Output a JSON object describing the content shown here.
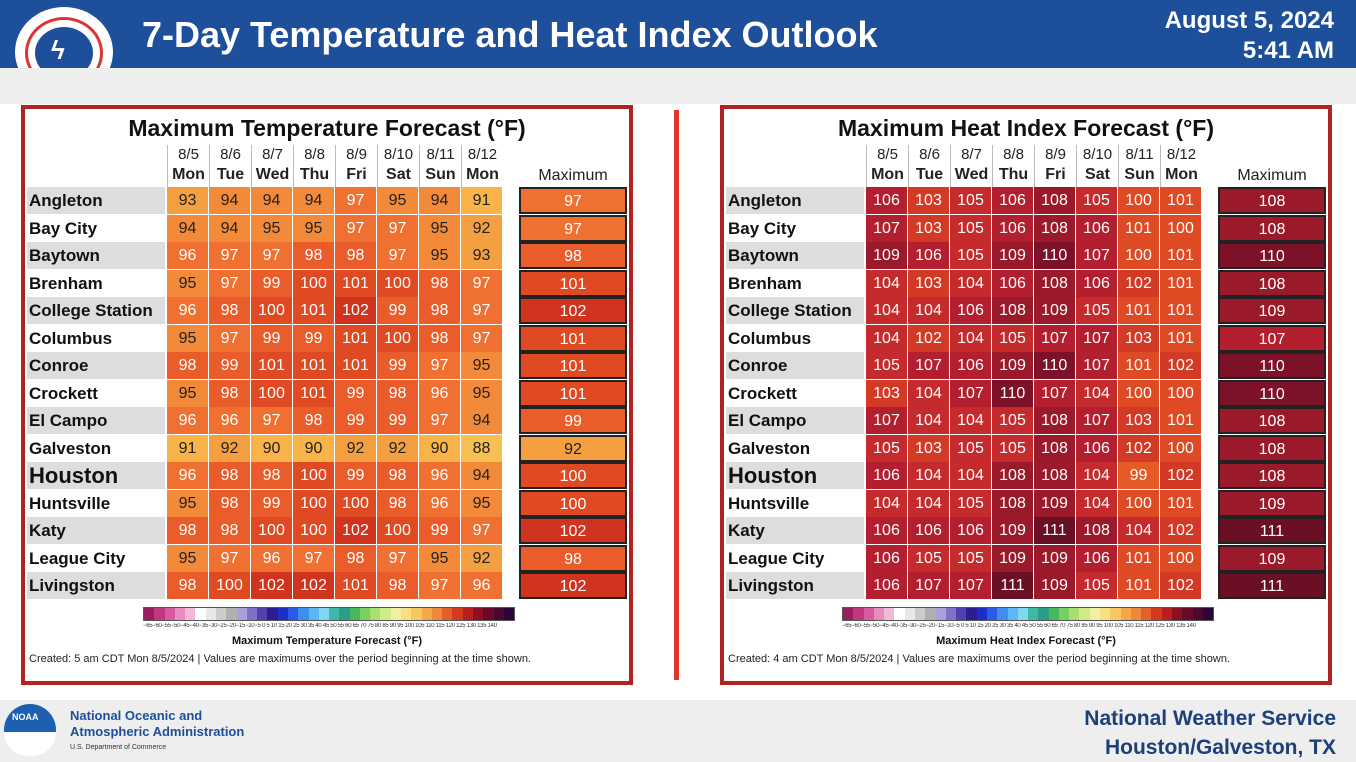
{
  "header": {
    "title": "7-Day Temperature and Heat Index Outlook",
    "date": "August 5, 2024",
    "time": "5:41 AM",
    "logo_text": "NATIONAL WEATHER SERVICE"
  },
  "days": [
    {
      "date": "8/5",
      "dow": "Mon"
    },
    {
      "date": "8/6",
      "dow": "Tue"
    },
    {
      "date": "8/7",
      "dow": "Wed"
    },
    {
      "date": "8/8",
      "dow": "Thu"
    },
    {
      "date": "8/9",
      "dow": "Fri"
    },
    {
      "date": "8/10",
      "dow": "Sat"
    },
    {
      "date": "8/11",
      "dow": "Sun"
    },
    {
      "date": "8/12",
      "dow": "Mon"
    }
  ],
  "max_label": "Maximum",
  "chart_data": [
    {
      "type": "table",
      "title": "Maximum Temperature Forecast (°F)",
      "legend_title": "Maximum Temperature Forecast (°F)",
      "legend_ticks": "−65−60−55−50−45−40−35−30−25−20−15−10−5 0 5 10 15 20 25 30 35 40 45 50 55 60 65 70 75 80 85 90 95 100 105 110 115 120 125 130 135 140",
      "created": "Created: 5 am CDT Mon 8/5/2024  |  Values are maximums over the period beginning at the time shown.",
      "rows": [
        {
          "city": "Angleton",
          "values": [
            93,
            94,
            94,
            94,
            97,
            95,
            94,
            91
          ],
          "max": 97
        },
        {
          "city": "Bay City",
          "values": [
            94,
            94,
            95,
            95,
            97,
            97,
            95,
            92
          ],
          "max": 97
        },
        {
          "city": "Baytown",
          "values": [
            96,
            97,
            97,
            98,
            98,
            97,
            95,
            93
          ],
          "max": 98
        },
        {
          "city": "Brenham",
          "values": [
            95,
            97,
            99,
            100,
            101,
            100,
            98,
            97
          ],
          "max": 101
        },
        {
          "city": "College Station",
          "values": [
            96,
            98,
            100,
            101,
            102,
            99,
            98,
            97
          ],
          "max": 102
        },
        {
          "city": "Columbus",
          "values": [
            95,
            97,
            99,
            99,
            101,
            100,
            98,
            97
          ],
          "max": 101
        },
        {
          "city": "Conroe",
          "values": [
            98,
            99,
            101,
            101,
            101,
            99,
            97,
            95
          ],
          "max": 101
        },
        {
          "city": "Crockett",
          "values": [
            95,
            98,
            100,
            101,
            99,
            98,
            96,
            95
          ],
          "max": 101
        },
        {
          "city": "El Campo",
          "values": [
            96,
            96,
            97,
            98,
            99,
            99,
            97,
            94
          ],
          "max": 99
        },
        {
          "city": "Galveston",
          "values": [
            91,
            92,
            90,
            90,
            92,
            92,
            90,
            88
          ],
          "max": 92
        },
        {
          "city": "Houston",
          "values": [
            96,
            98,
            98,
            100,
            99,
            98,
            96,
            94
          ],
          "max": 100
        },
        {
          "city": "Huntsville",
          "values": [
            95,
            98,
            99,
            100,
            100,
            98,
            96,
            95
          ],
          "max": 100
        },
        {
          "city": "Katy",
          "values": [
            98,
            98,
            100,
            100,
            102,
            100,
            99,
            97
          ],
          "max": 102
        },
        {
          "city": "League City",
          "values": [
            95,
            97,
            96,
            97,
            98,
            97,
            95,
            92
          ],
          "max": 98
        },
        {
          "city": "Livingston",
          "values": [
            98,
            100,
            102,
            102,
            101,
            98,
            97,
            96
          ],
          "max": 102
        }
      ]
    },
    {
      "type": "table",
      "title": "Maximum Heat Index Forecast (°F)",
      "legend_title": "Maximum Heat Index Forecast (°F)",
      "legend_ticks": "−65−60−55−50−45−40−35−30−25−20−15−10−5 0 5 10 15 20 25 30 35 40 45 50 55 60 65 70 75 80 85 90 95 100 105 110 115 120 125 130 135 140",
      "created": "Created: 4 am CDT Mon 8/5/2024  |  Values are maximums over the period beginning at the time shown.",
      "rows": [
        {
          "city": "Angleton",
          "values": [
            106,
            103,
            105,
            106,
            108,
            105,
            100,
            101
          ],
          "max": 108
        },
        {
          "city": "Bay City",
          "values": [
            107,
            103,
            105,
            106,
            108,
            106,
            101,
            100
          ],
          "max": 108
        },
        {
          "city": "Baytown",
          "values": [
            109,
            106,
            105,
            109,
            110,
            107,
            100,
            101
          ],
          "max": 110
        },
        {
          "city": "Brenham",
          "values": [
            104,
            103,
            104,
            106,
            108,
            106,
            102,
            101
          ],
          "max": 108
        },
        {
          "city": "College Station",
          "values": [
            104,
            104,
            106,
            108,
            109,
            105,
            101,
            101
          ],
          "max": 109
        },
        {
          "city": "Columbus",
          "values": [
            104,
            102,
            104,
            105,
            107,
            107,
            103,
            101
          ],
          "max": 107
        },
        {
          "city": "Conroe",
          "values": [
            105,
            107,
            106,
            109,
            110,
            107,
            101,
            102
          ],
          "max": 110
        },
        {
          "city": "Crockett",
          "values": [
            103,
            104,
            107,
            110,
            107,
            104,
            100,
            100
          ],
          "max": 110
        },
        {
          "city": "El Campo",
          "values": [
            107,
            104,
            104,
            105,
            108,
            107,
            103,
            101
          ],
          "max": 108
        },
        {
          "city": "Galveston",
          "values": [
            105,
            103,
            105,
            105,
            108,
            106,
            102,
            100
          ],
          "max": 108
        },
        {
          "city": "Houston",
          "values": [
            106,
            104,
            104,
            108,
            108,
            104,
            99,
            102
          ],
          "max": 108
        },
        {
          "city": "Huntsville",
          "values": [
            104,
            104,
            105,
            108,
            109,
            104,
            100,
            101
          ],
          "max": 109
        },
        {
          "city": "Katy",
          "values": [
            106,
            106,
            106,
            109,
            111,
            108,
            104,
            102
          ],
          "max": 111
        },
        {
          "city": "League City",
          "values": [
            106,
            105,
            105,
            109,
            109,
            106,
            101,
            100
          ],
          "max": 109
        },
        {
          "city": "Livingston",
          "values": [
            106,
            107,
            107,
            111,
            109,
            105,
            101,
            102
          ],
          "max": 111
        }
      ]
    }
  ],
  "footer": {
    "noaa_line1": "National Oceanic and",
    "noaa_line2": "Atmospheric Administration",
    "noaa_line3": "U.S. Department of Commerce",
    "nws_line1": "National Weather Service",
    "nws_line2": "Houston/Galveston, TX"
  }
}
